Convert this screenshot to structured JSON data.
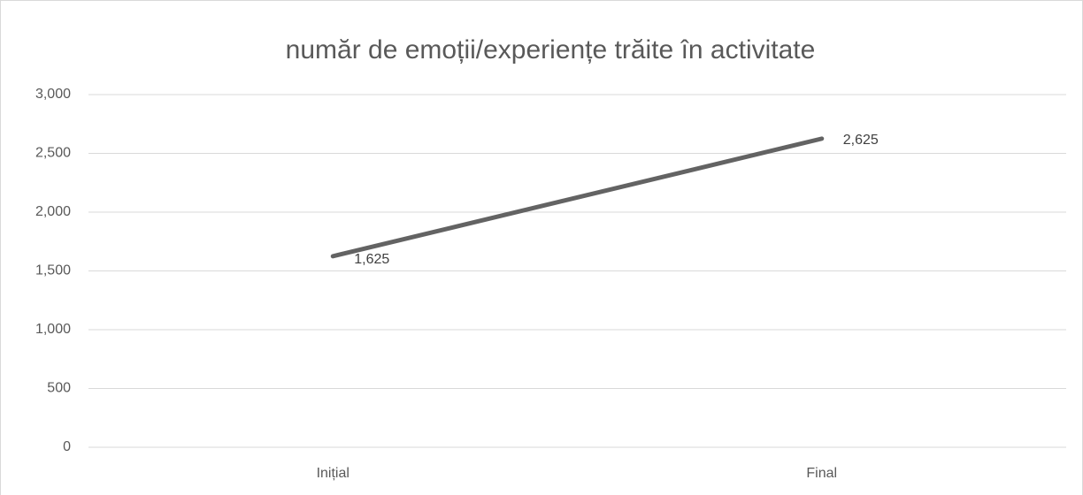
{
  "chart_data": {
    "type": "line",
    "title": "număr de emoții/experiențe trăite în activitate",
    "categories": [
      "Inițial",
      "Final"
    ],
    "series": [
      {
        "name": "număr de emoții/experiențe trăite în activitate",
        "color": "#636363",
        "values": [
          1625,
          2625
        ],
        "value_labels": [
          "1,625",
          "2,625"
        ]
      }
    ],
    "ylim": [
      0,
      3000
    ],
    "yticks": [
      0,
      500,
      {
        "value": 1000,
        "label": "1,000"
      },
      {
        "value": 1500,
        "label": "1,500"
      },
      {
        "value": 2000,
        "label": "2,000"
      },
      {
        "value": 2500,
        "label": "2,500"
      },
      {
        "value": 3000,
        "label": "3,000"
      }
    ],
    "grid": true
  }
}
